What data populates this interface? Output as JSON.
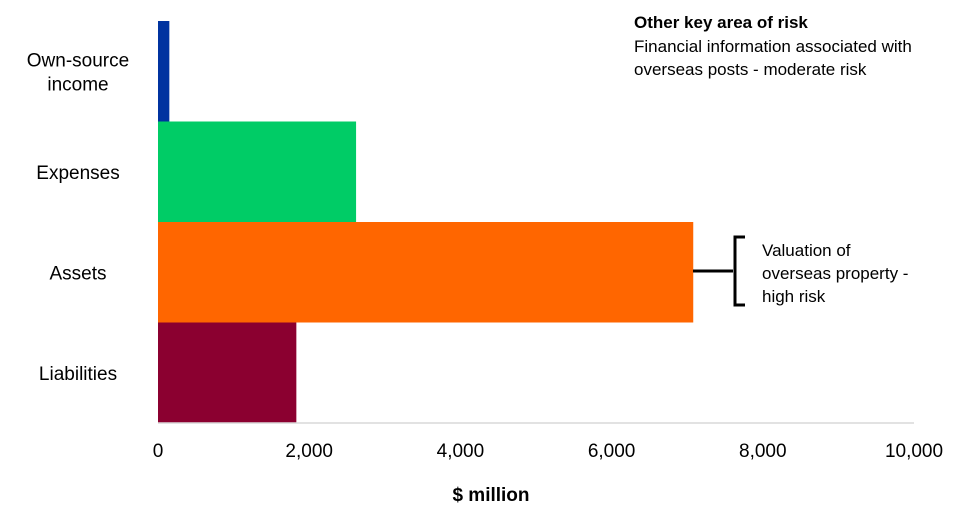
{
  "chart_data": {
    "type": "bar",
    "orientation": "horizontal",
    "categories": [
      [
        "Own-source",
        "income"
      ],
      [
        "Expenses"
      ],
      [
        "Assets"
      ],
      [
        "Liabilities"
      ]
    ],
    "values": [
      150,
      2620,
      7080,
      1830
    ],
    "colors": [
      "#0033a0",
      "#00cc66",
      "#ff6600",
      "#8b0030"
    ],
    "xlabel": "$ million",
    "xlim": [
      0,
      10000
    ],
    "xticks": [
      0,
      2000,
      4000,
      6000,
      8000,
      10000
    ],
    "xtick_labels": [
      "0",
      "2,000",
      "4,000",
      "6,000",
      "8,000",
      "10,000"
    ],
    "grid": false
  },
  "notes": {
    "key_risk_title": "Other key area of risk",
    "key_risk_lines": [
      "Financial information associated with",
      "overseas posts - moderate risk"
    ],
    "callout_lines": [
      "Valuation of",
      "overseas property -",
      "high risk"
    ]
  }
}
